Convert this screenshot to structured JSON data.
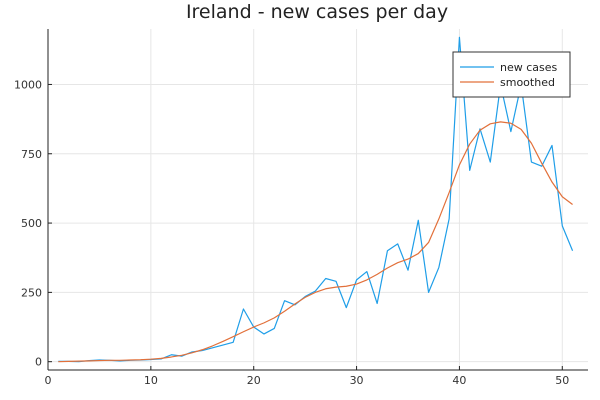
{
  "chart_data": {
    "type": "line",
    "title": "Ireland - new cases per day",
    "xlabel": "",
    "ylabel": "",
    "xlim": [
      0,
      52.5
    ],
    "ylim": [
      -30,
      1200
    ],
    "xticks": [
      0,
      10,
      20,
      30,
      40,
      50
    ],
    "yticks": [
      0,
      250,
      500,
      750,
      1000
    ],
    "x_tick_labels": [
      "0",
      "10",
      "20",
      "30",
      "40",
      "50"
    ],
    "y_tick_labels": [
      "0",
      "250",
      "500",
      "750",
      "1000"
    ],
    "grid": true,
    "legend_position": "top-right",
    "x": [
      1,
      2,
      3,
      4,
      5,
      6,
      7,
      8,
      9,
      10,
      11,
      12,
      13,
      14,
      15,
      16,
      17,
      18,
      19,
      20,
      21,
      22,
      23,
      24,
      25,
      26,
      27,
      28,
      29,
      30,
      31,
      32,
      33,
      34,
      35,
      36,
      37,
      38,
      39,
      40,
      41,
      42,
      43,
      44,
      45,
      46,
      47,
      48,
      49,
      50,
      51
    ],
    "series": [
      {
        "name": "new cases",
        "color": "#1f9ee8",
        "values": [
          1,
          1,
          0,
          4,
          6,
          5,
          3,
          5,
          6,
          8,
          10,
          25,
          20,
          35,
          40,
          50,
          60,
          70,
          190,
          125,
          100,
          120,
          220,
          205,
          235,
          255,
          300,
          290,
          195,
          295,
          325,
          210,
          400,
          425,
          330,
          510,
          250,
          340,
          515,
          1170,
          690,
          840,
          720,
          1000,
          830,
          1000,
          720,
          705,
          780,
          490,
          400
        ]
      },
      {
        "name": "smoothed",
        "color": "#e2703a",
        "values": [
          0,
          1,
          2,
          3,
          4,
          5,
          5,
          6,
          7,
          9,
          12,
          17,
          23,
          32,
          43,
          57,
          73,
          90,
          108,
          125,
          140,
          158,
          182,
          208,
          232,
          250,
          263,
          269,
          272,
          280,
          295,
          315,
          338,
          357,
          370,
          390,
          430,
          515,
          610,
          710,
          785,
          835,
          858,
          865,
          860,
          838,
          788,
          716,
          648,
          595,
          567
        ]
      }
    ]
  }
}
